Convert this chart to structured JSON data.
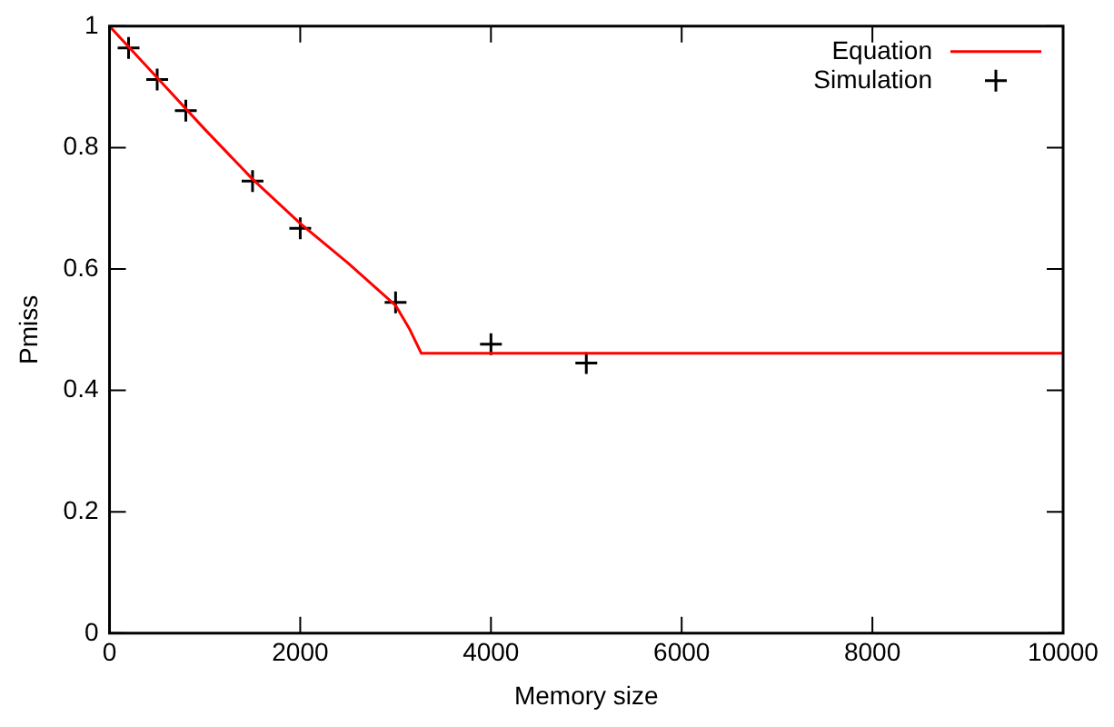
{
  "chart_data": {
    "type": "line",
    "xlabel": "Memory size",
    "ylabel": "Pmiss",
    "xlim": [
      0,
      10000
    ],
    "xticks": [
      0,
      2000,
      4000,
      6000,
      8000,
      10000
    ],
    "ylim": [
      0,
      1
    ],
    "yticks": [
      0,
      0.2,
      0.4,
      0.6,
      0.8,
      1
    ],
    "grid": false,
    "legend": "top right",
    "series": [
      {
        "name": "Equation",
        "type": "line",
        "color": "#ff0000",
        "marker": "none",
        "line_style": "solid",
        "x": [
          0,
          500,
          1000,
          1500,
          2000,
          2500,
          3000,
          3150,
          3270,
          10000
        ],
        "values": [
          1,
          0.915,
          0.83,
          0.748,
          0.675,
          0.61,
          0.54,
          0.5,
          0.461,
          0.461
        ]
      },
      {
        "name": "Simulation",
        "type": "scatter",
        "color": "#000000",
        "marker": "cross",
        "x": [
          200,
          500,
          800,
          1500,
          2000,
          3000,
          4000,
          5000
        ],
        "values": [
          0.964,
          0.912,
          0.861,
          0.745,
          0.667,
          0.545,
          0.476,
          0.445
        ]
      }
    ]
  }
}
